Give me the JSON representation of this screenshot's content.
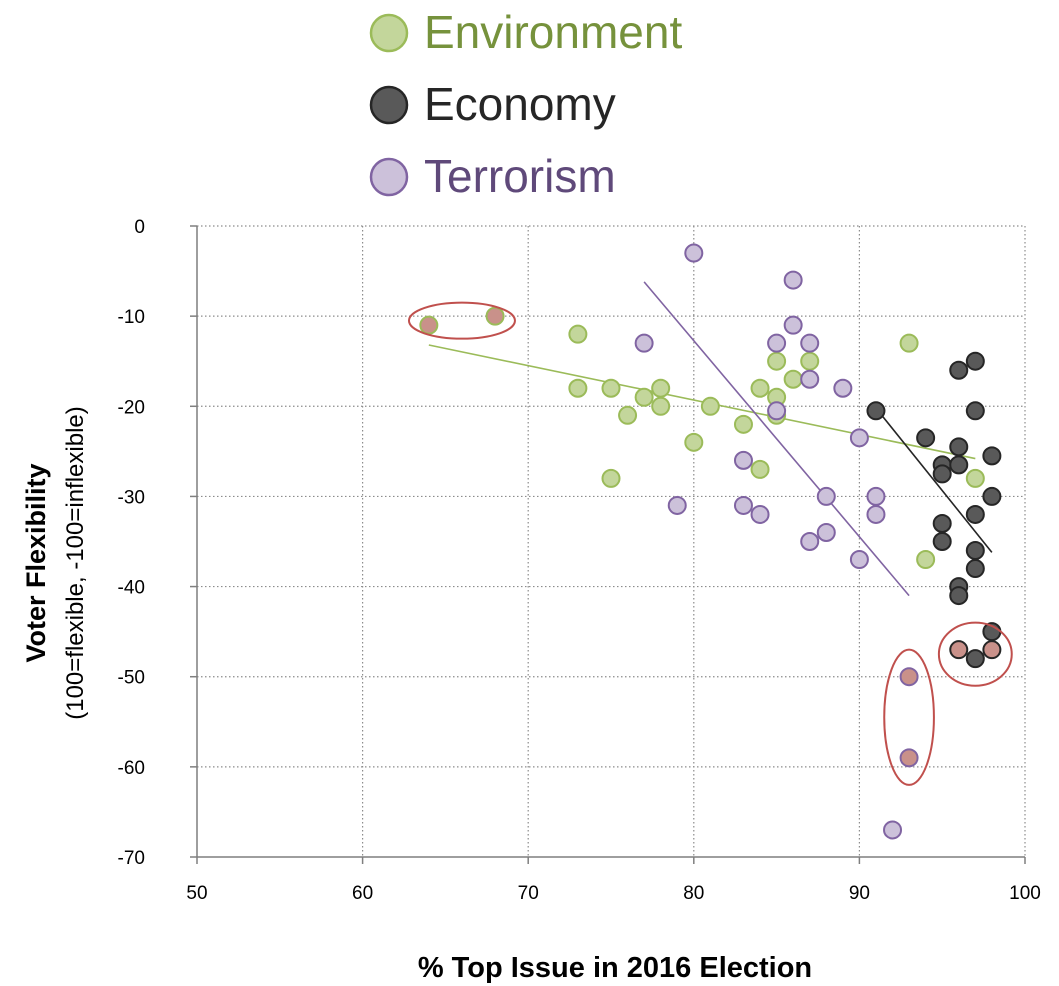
{
  "chart_data": {
    "type": "scatter",
    "xlabel": "% Top Issue in 2016 Election",
    "ylabel": "Voter Flexibility",
    "ylabel_sub": "(100=flexible, -100=inflexible)",
    "xlim": [
      50,
      100
    ],
    "ylim": [
      -70,
      0
    ],
    "x_ticks": [
      50,
      60,
      70,
      80,
      90,
      100
    ],
    "y_ticks": [
      0,
      -10,
      -20,
      -30,
      -40,
      -50,
      -60,
      -70
    ],
    "grid": "dotted",
    "legend_position": "top",
    "series": [
      {
        "name": "Environment",
        "color": "#9bbb59",
        "fill": "#c3d69b",
        "text_color": "#76923c",
        "points": [
          [
            64,
            -11
          ],
          [
            68,
            -10
          ],
          [
            73,
            -12
          ],
          [
            73,
            -18
          ],
          [
            75,
            -18
          ],
          [
            75,
            -28
          ],
          [
            76,
            -21
          ],
          [
            77,
            -19
          ],
          [
            78,
            -18
          ],
          [
            78,
            -20
          ],
          [
            80,
            -24
          ],
          [
            81,
            -20
          ],
          [
            83,
            -22
          ],
          [
            84,
            -18
          ],
          [
            84,
            -27
          ],
          [
            85,
            -15
          ],
          [
            85,
            -19
          ],
          [
            85,
            -21
          ],
          [
            86,
            -17
          ],
          [
            87,
            -15
          ],
          [
            93,
            -13
          ],
          [
            94,
            -37
          ],
          [
            97,
            -28
          ]
        ],
        "trendline": [
          [
            64,
            -13.2
          ],
          [
            97,
            -25.8
          ]
        ]
      },
      {
        "name": "Economy",
        "color": "#262626",
        "fill": "#595959",
        "text_color": "#262626",
        "points": [
          [
            91,
            -20.5
          ],
          [
            94,
            -23.5
          ],
          [
            95,
            -26.5
          ],
          [
            95,
            -27.5
          ],
          [
            95,
            -33
          ],
          [
            95,
            -35
          ],
          [
            96,
            -16
          ],
          [
            96,
            -24.5
          ],
          [
            96,
            -26.5
          ],
          [
            96,
            -40
          ],
          [
            96,
            -41
          ],
          [
            96,
            -47
          ],
          [
            97,
            -15
          ],
          [
            97,
            -20.5
          ],
          [
            97,
            -32
          ],
          [
            97,
            -36
          ],
          [
            97,
            -38
          ],
          [
            97,
            -48
          ],
          [
            98,
            -25.5
          ],
          [
            98,
            -30
          ],
          [
            98,
            -45
          ],
          [
            98,
            -47
          ]
        ],
        "trendline": [
          [
            91,
            -20.2
          ],
          [
            98,
            -36.2
          ]
        ]
      },
      {
        "name": "Terrorism",
        "color": "#8064a2",
        "fill": "#ccc1da",
        "text_color": "#5f497a",
        "points": [
          [
            77,
            -13
          ],
          [
            79,
            -31
          ],
          [
            80,
            -3
          ],
          [
            83,
            -26
          ],
          [
            83,
            -31
          ],
          [
            84,
            -32
          ],
          [
            85,
            -13
          ],
          [
            85,
            -20.5
          ],
          [
            86,
            -6
          ],
          [
            86,
            -11
          ],
          [
            87,
            -13
          ],
          [
            87,
            -17
          ],
          [
            87,
            -35
          ],
          [
            88,
            -30
          ],
          [
            88,
            -34
          ],
          [
            89,
            -18
          ],
          [
            90,
            -23.5
          ],
          [
            90,
            -37
          ],
          [
            91,
            -30
          ],
          [
            91,
            -32
          ],
          [
            92,
            -67
          ],
          [
            93,
            -50
          ],
          [
            93,
            -59
          ]
        ],
        "trendline": [
          [
            77,
            -6.2
          ],
          [
            93,
            -41
          ]
        ]
      }
    ],
    "highlighted_points": [
      [
        64,
        -11
      ],
      [
        68,
        -10
      ],
      [
        93,
        -50
      ],
      [
        93,
        -59
      ],
      [
        96,
        -47
      ],
      [
        98,
        -47
      ]
    ],
    "highlight_color": "#c0504d",
    "highlight_ellipses": [
      {
        "cx": 66,
        "cy": -10.5,
        "rx": 3.2,
        "ry": 2
      },
      {
        "cx": 93,
        "cy": -54.5,
        "rx": 1.5,
        "ry": 7.5
      },
      {
        "cx": 97,
        "cy": -47.5,
        "rx": 2.2,
        "ry": 3.5
      }
    ]
  }
}
